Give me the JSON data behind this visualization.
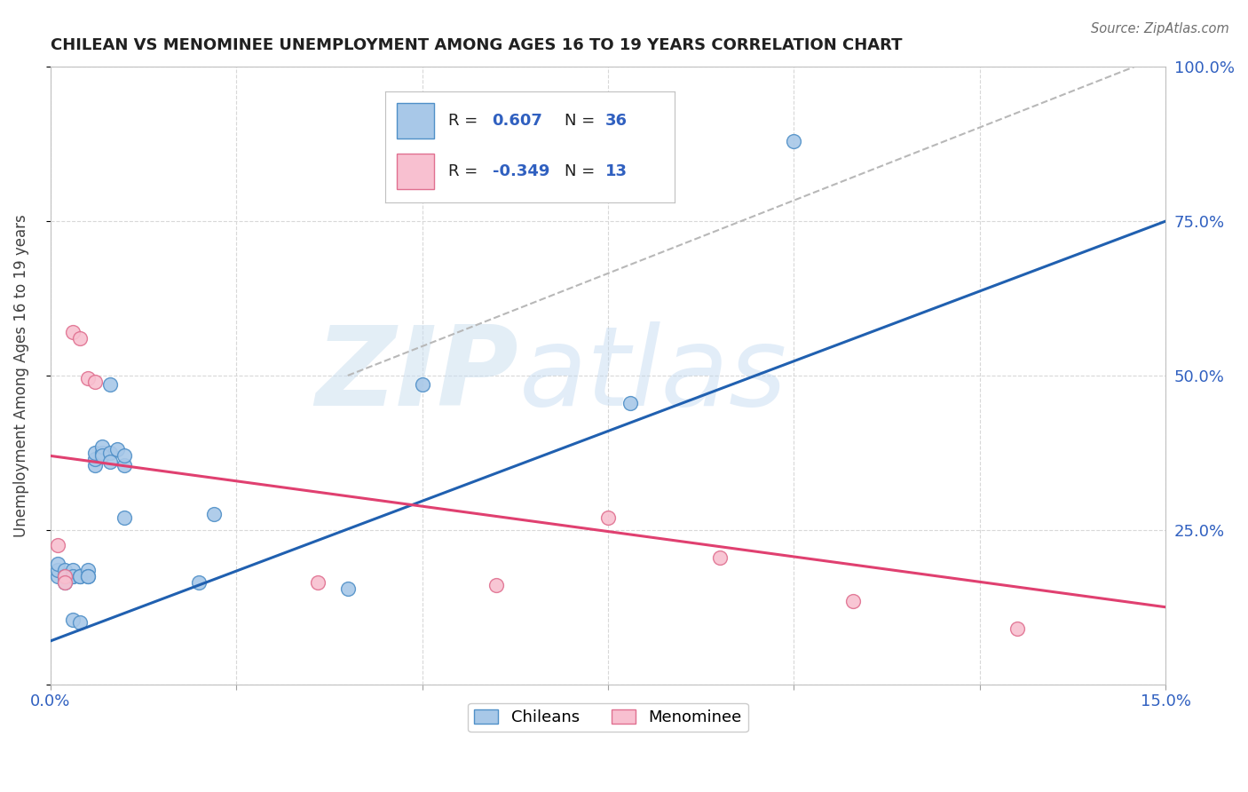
{
  "title": "CHILEAN VS MENOMINEE UNEMPLOYMENT AMONG AGES 16 TO 19 YEARS CORRELATION CHART",
  "source": "Source: ZipAtlas.com",
  "ylabel": "Unemployment Among Ages 16 to 19 years",
  "xlim": [
    0.0,
    0.15
  ],
  "ylim": [
    0.0,
    1.0
  ],
  "xticks": [
    0.0,
    0.025,
    0.05,
    0.075,
    0.1,
    0.125,
    0.15
  ],
  "xticklabels": [
    "0.0%",
    "",
    "",
    "",
    "",
    "",
    "15.0%"
  ],
  "yticks": [
    0.0,
    0.25,
    0.5,
    0.75,
    1.0
  ],
  "yticklabels_right": [
    "",
    "25.0%",
    "50.0%",
    "75.0%",
    "100.0%"
  ],
  "watermark_zip": "ZIP",
  "watermark_atlas": "atlas",
  "blue_color": "#a8c8e8",
  "blue_edge_color": "#5090c8",
  "blue_line_color": "#2060b0",
  "pink_color": "#f8c0d0",
  "pink_edge_color": "#e07090",
  "pink_line_color": "#e04070",
  "gray_dash_color": "#b8b8b8",
  "legend_R_blue": "0.607",
  "legend_N_blue": "36",
  "legend_R_pink": "-0.349",
  "legend_N_pink": "13",
  "chilean_x": [
    0.001,
    0.001,
    0.001,
    0.002,
    0.002,
    0.002,
    0.002,
    0.003,
    0.003,
    0.003,
    0.003,
    0.004,
    0.004,
    0.004,
    0.005,
    0.005,
    0.005,
    0.006,
    0.006,
    0.006,
    0.007,
    0.007,
    0.007,
    0.008,
    0.008,
    0.008,
    0.009,
    0.01,
    0.01,
    0.01,
    0.02,
    0.022,
    0.04,
    0.05,
    0.078,
    0.1
  ],
  "chilean_y": [
    0.175,
    0.185,
    0.195,
    0.175,
    0.185,
    0.175,
    0.165,
    0.175,
    0.185,
    0.175,
    0.105,
    0.175,
    0.175,
    0.1,
    0.185,
    0.175,
    0.175,
    0.355,
    0.365,
    0.375,
    0.375,
    0.385,
    0.37,
    0.375,
    0.36,
    0.485,
    0.38,
    0.355,
    0.27,
    0.37,
    0.165,
    0.275,
    0.155,
    0.485,
    0.455,
    0.88
  ],
  "menominee_x": [
    0.001,
    0.002,
    0.002,
    0.003,
    0.004,
    0.005,
    0.006,
    0.036,
    0.06,
    0.075,
    0.09,
    0.108,
    0.13
  ],
  "menominee_y": [
    0.225,
    0.175,
    0.165,
    0.57,
    0.56,
    0.495,
    0.49,
    0.165,
    0.16,
    0.27,
    0.205,
    0.135,
    0.09
  ],
  "blue_trendline_x": [
    0.0,
    0.15
  ],
  "blue_trendline_y": [
    0.07,
    0.75
  ],
  "pink_trendline_x": [
    0.0,
    0.15
  ],
  "pink_trendline_y": [
    0.37,
    0.125
  ],
  "ref_line_x": [
    0.04,
    0.15
  ],
  "ref_line_y": [
    0.5,
    1.02
  ]
}
